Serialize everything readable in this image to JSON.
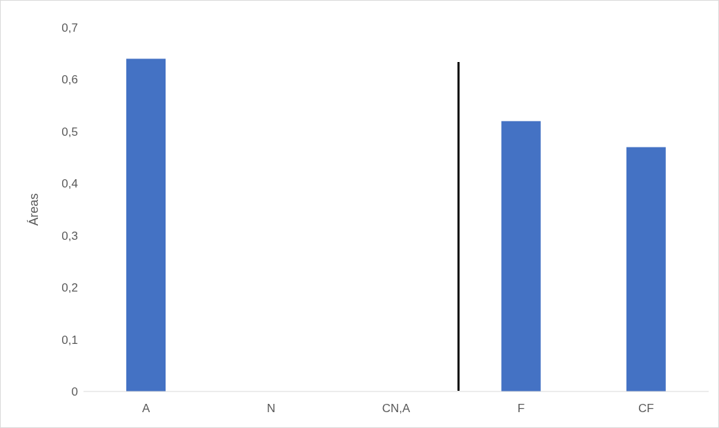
{
  "chart_data": {
    "type": "bar",
    "ylabel": "Áreas",
    "categories": [
      "A",
      "N",
      "CN,A",
      "F",
      "CF"
    ],
    "values": [
      0.64,
      0,
      0,
      0.52,
      0.47
    ],
    "color": "#4472c4",
    "ylim": [
      0,
      0.7
    ],
    "yticks": [
      0,
      {
        "value": 0.1,
        "label": "0,1"
      },
      {
        "value": 0.2,
        "label": "0,2"
      },
      {
        "value": 0.3,
        "label": "0,3"
      },
      {
        "value": 0.4,
        "label": "0,4"
      },
      {
        "value": 0.5,
        "label": "0,5"
      },
      {
        "value": 0.6,
        "label": "0,6"
      },
      {
        "value": 0.7,
        "label": "0,7"
      }
    ],
    "grid": false,
    "legend": false
  }
}
